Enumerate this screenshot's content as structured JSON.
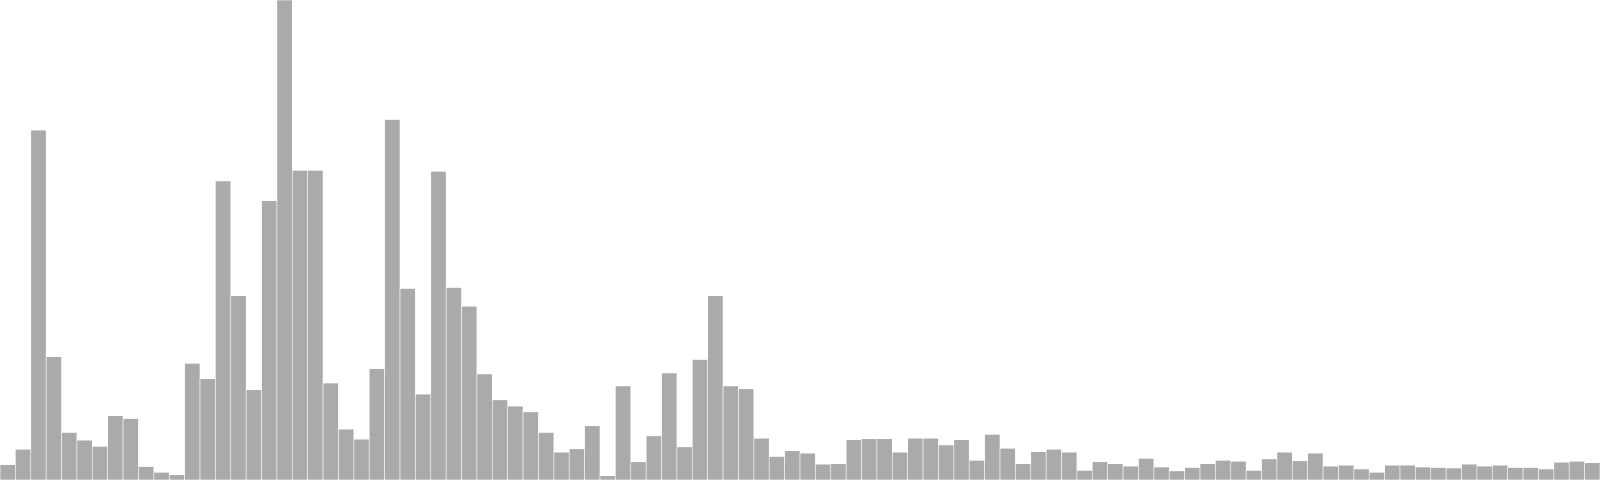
{
  "chart_data": {
    "type": "bar",
    "title": "",
    "xlabel": "",
    "ylabel": "",
    "grid": false,
    "ylim": [
      0,
      100
    ],
    "bar_color": "#aaaaaa",
    "bar_edge_color": "#ffffff",
    "values": [
      3.2,
      6.4,
      72.9,
      25.7,
      9.9,
      8.3,
      7.0,
      13.4,
      12.8,
      2.8,
      1.6,
      1.1,
      24.3,
      21.1,
      62.3,
      38.4,
      18.8,
      58.2,
      100.0,
      64.5,
      64.5,
      20.2,
      10.6,
      8.5,
      23.2,
      75.1,
      39.9,
      17.9,
      64.3,
      40.1,
      36.2,
      22.1,
      16.7,
      15.4,
      14.2,
      9.9,
      5.8,
      6.5,
      11.3,
      0.9,
      19.6,
      3.8,
      9.2,
      22.3,
      6.9,
      25.1,
      38.4,
      19.6,
      19.0,
      8.7,
      4.9,
      6.1,
      5.6,
      3.3,
      3.4,
      8.4,
      8.6,
      8.6,
      5.8,
      8.7,
      8.7,
      7.3,
      8.4,
      4.1,
      9.5,
      6.6,
      3.4,
      5.9,
      6.4,
      5.8,
      2.0,
      3.8,
      3.4,
      2.9,
      4.5,
      2.7,
      1.9,
      2.6,
      3.4,
      4.1,
      3.9,
      2.0,
      4.4,
      5.8,
      4.0,
      5.6,
      2.9,
      3.1,
      2.3,
      1.6,
      3.1,
      3.1,
      2.7,
      2.6,
      2.5,
      3.3,
      2.9,
      3.1,
      2.6,
      2.6,
      2.3,
      3.7,
      3.9,
      3.6
    ]
  }
}
